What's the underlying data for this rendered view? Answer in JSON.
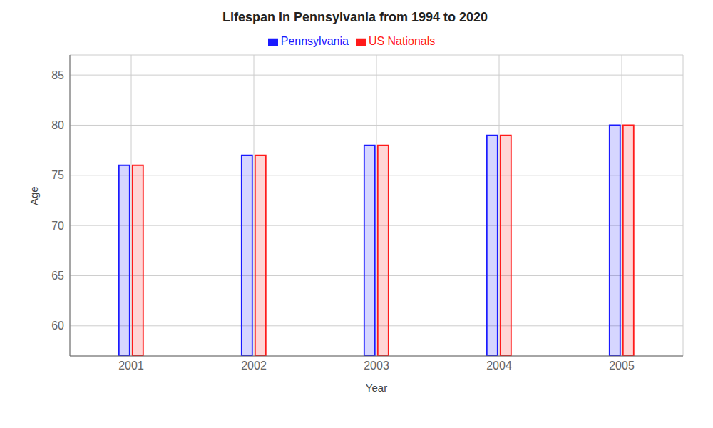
{
  "chart_data": {
    "type": "bar",
    "title": "Lifespan in Pennsylvania from 1994 to 2020",
    "x_label": "Year",
    "y_label": "Age",
    "categories": [
      "2001",
      "2002",
      "2003",
      "2004",
      "2005"
    ],
    "series": [
      {
        "name": "Pennsylvania",
        "color": "#1a1aff",
        "values": [
          76,
          77,
          78,
          79,
          80
        ]
      },
      {
        "name": "US Nationals",
        "color": "#ff1a1a",
        "values": [
          76,
          77,
          78,
          79,
          80
        ]
      }
    ],
    "ylim": [
      57,
      87
    ],
    "yticks": [
      60,
      65,
      70,
      75,
      80,
      85
    ],
    "grid": true,
    "legend": "top"
  }
}
